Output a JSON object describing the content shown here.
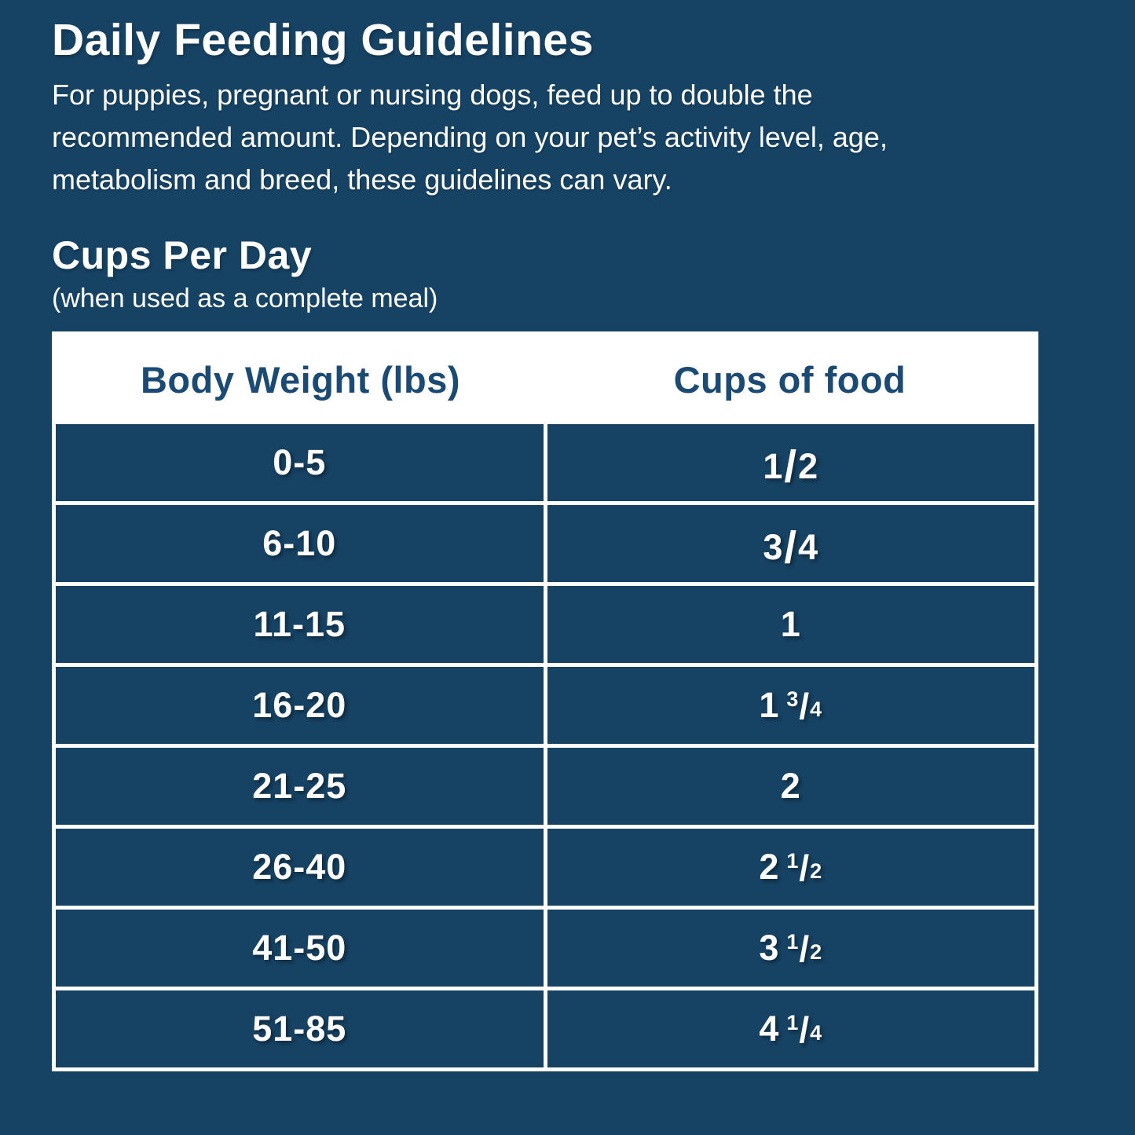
{
  "page": {
    "title": "Daily Feeding Guidelines",
    "intro": "For puppies, pregnant or nursing dogs, feed up to double the recommended amount. Depending on your pet’s activity level, age, metabolism and breed, these guidelines can vary.",
    "section_title": "Cups Per Day",
    "section_subtitle": "(when used as a complete meal)"
  },
  "colors": {
    "background": "#164263",
    "cell_blue": "#164263",
    "white": "#ffffff",
    "header_text": "#1b4a74"
  },
  "table": {
    "columns": [
      "Body Weight (lbs)",
      "Cups of food"
    ],
    "rows": [
      {
        "weight": "0-5",
        "cups": "1/2",
        "whole": "",
        "num": "1",
        "den": "2"
      },
      {
        "weight": "6-10",
        "cups": "3/4",
        "whole": "",
        "num": "3",
        "den": "4"
      },
      {
        "weight": "11-15",
        "cups": "1",
        "whole": "1",
        "num": "",
        "den": ""
      },
      {
        "weight": "16-20",
        "cups": "1 3/4",
        "whole": "1",
        "num": "3",
        "den": "4"
      },
      {
        "weight": "21-25",
        "cups": "2",
        "whole": "2",
        "num": "",
        "den": ""
      },
      {
        "weight": "26-40",
        "cups": "2 1/2",
        "whole": "2",
        "num": "1",
        "den": "2"
      },
      {
        "weight": "41-50",
        "cups": "3 1/2",
        "whole": "3",
        "num": "1",
        "den": "2"
      },
      {
        "weight": "51-85",
        "cups": "4 1/4",
        "whole": "4",
        "num": "1",
        "den": "4"
      }
    ]
  },
  "chart_data": {
    "type": "table",
    "title": "Cups Per Day",
    "subtitle": "(when used as a complete meal)",
    "context_title": "Daily Feeding Guidelines",
    "context_note": "For puppies, pregnant or nursing dogs, feed up to double the recommended amount. Depending on your pet’s activity level, age, metabolism and breed, these guidelines can vary.",
    "columns": [
      "Body Weight (lbs)",
      "Cups of food"
    ],
    "rows": [
      [
        "0-5",
        "1/2"
      ],
      [
        "6-10",
        "3/4"
      ],
      [
        "11-15",
        "1"
      ],
      [
        "16-20",
        "1 3/4"
      ],
      [
        "21-25",
        "2"
      ],
      [
        "26-40",
        "2 1/2"
      ],
      [
        "41-50",
        "3 1/2"
      ],
      [
        "51-85",
        "4 1/4"
      ]
    ]
  }
}
